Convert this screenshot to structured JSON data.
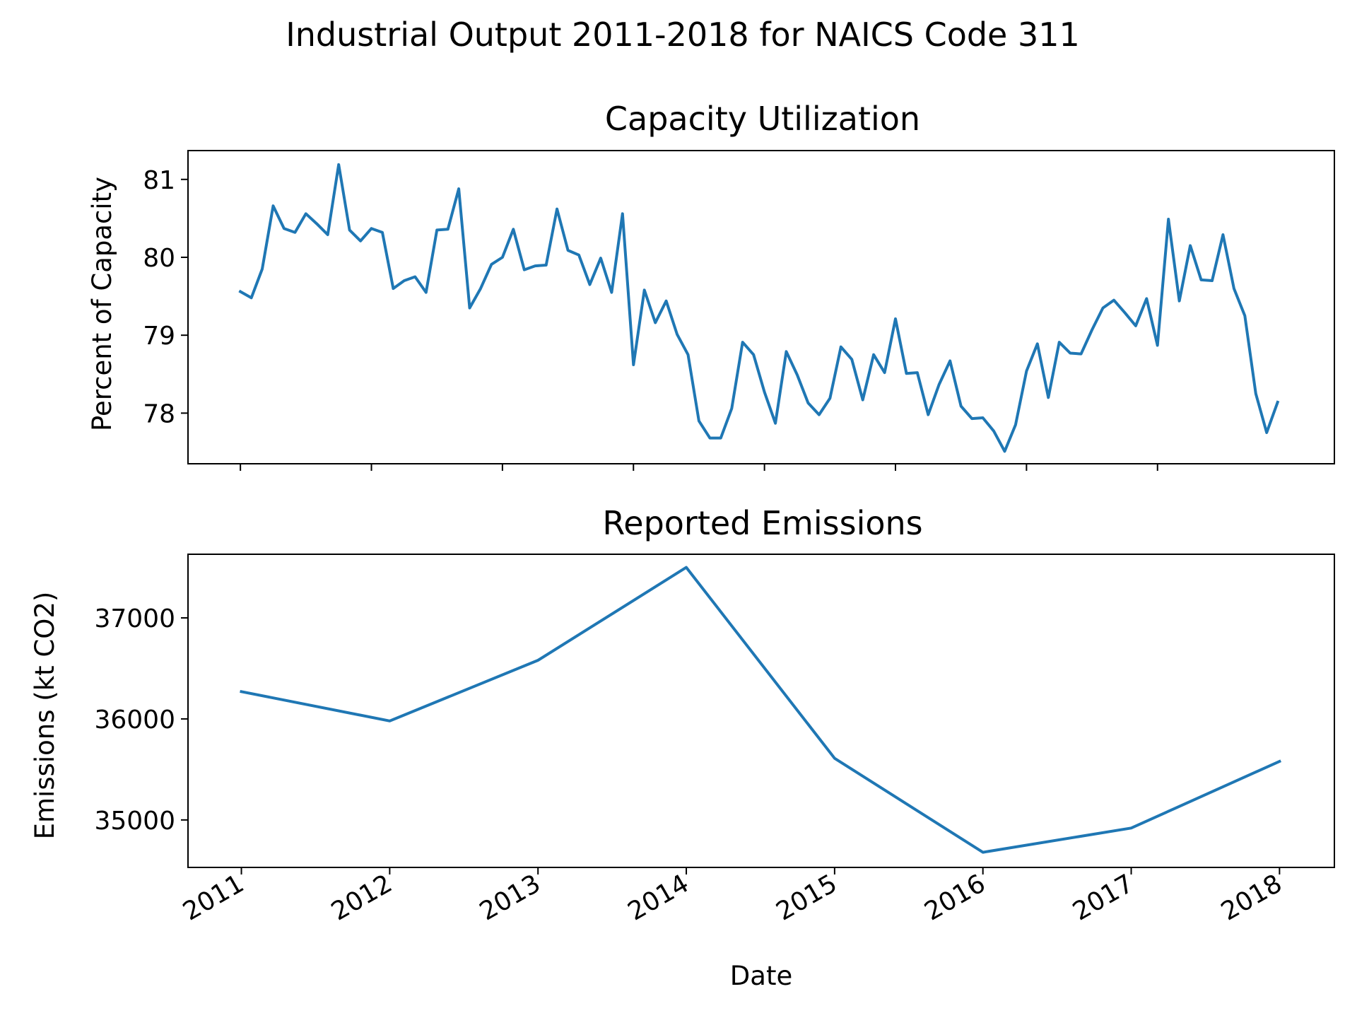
{
  "colors": {
    "line": "#1f77b4",
    "axes": "#000000",
    "background": "#ffffff"
  },
  "figure": {
    "suptitle": "Industrial Output 2011-2018 for NAICS Code 311"
  },
  "chart_data": [
    {
      "type": "line",
      "title": "Capacity Utilization",
      "xlabel": "",
      "ylabel": "Percent of Capacity",
      "x_start": "2011-01",
      "x_step": "month",
      "xlim": [
        2010.6,
        2019.35
      ],
      "ylim": [
        77.35,
        81.37
      ],
      "yticks": [
        78,
        79,
        80,
        81
      ],
      "ytick_labels": [
        "78",
        "79",
        "80",
        "81"
      ],
      "xticks": [
        2011,
        2012,
        2013,
        2014,
        2015,
        2016,
        2017,
        2018
      ],
      "show_xtick_labels": false,
      "grid": false,
      "series": [
        {
          "values": [
            79.56,
            79.48,
            79.85,
            80.66,
            80.37,
            80.32,
            80.56,
            80.43,
            80.29,
            81.19,
            80.35,
            80.21,
            80.37,
            80.32,
            79.6,
            79.7,
            79.75,
            79.55,
            80.35,
            80.36,
            80.88,
            79.35,
            79.6,
            79.91,
            80.0,
            80.36,
            79.84,
            79.89,
            79.9,
            80.62,
            80.09,
            80.03,
            79.65,
            79.99,
            79.55,
            80.56,
            78.62,
            79.58,
            79.16,
            79.44,
            79.01,
            78.75,
            77.9,
            77.68,
            77.68,
            78.06,
            78.91,
            78.75,
            78.27,
            77.87,
            78.79,
            78.49,
            78.13,
            77.98,
            78.19,
            78.85,
            78.69,
            78.17,
            78.75,
            78.52,
            79.21,
            78.51,
            78.52,
            77.98,
            78.37,
            78.67,
            78.09,
            77.93,
            77.94,
            77.77,
            77.51,
            77.85,
            78.54,
            78.89,
            78.2,
            78.91,
            78.77,
            78.76,
            79.07,
            79.35,
            79.45,
            79.29,
            79.12,
            79.47,
            78.87,
            80.49,
            79.44,
            80.15,
            79.71,
            79.7,
            80.29,
            79.6,
            79.25,
            78.25,
            77.75,
            78.14
          ]
        }
      ]
    },
    {
      "type": "line",
      "title": "Reported Emissions",
      "xlabel": "Date",
      "ylabel": "Emissions (kt CO2)",
      "xlim": [
        2010.64,
        2018.37
      ],
      "ylim": [
        34530,
        37630
      ],
      "yticks": [
        35000,
        36000,
        37000
      ],
      "ytick_labels": [
        "35000",
        "36000",
        "37000"
      ],
      "xticks": [
        2011,
        2012,
        2013,
        2014,
        2015,
        2016,
        2017,
        2018
      ],
      "xtick_labels": [
        "2011",
        "2012",
        "2013",
        "2014",
        "2015",
        "2016",
        "2017",
        "2018"
      ],
      "grid": false,
      "series": [
        {
          "x": [
            2011,
            2012,
            2013,
            2014,
            2015,
            2016,
            2017,
            2018
          ],
          "values": [
            36270,
            35980,
            36580,
            37500,
            35610,
            34680,
            34920,
            35580
          ]
        }
      ]
    }
  ]
}
